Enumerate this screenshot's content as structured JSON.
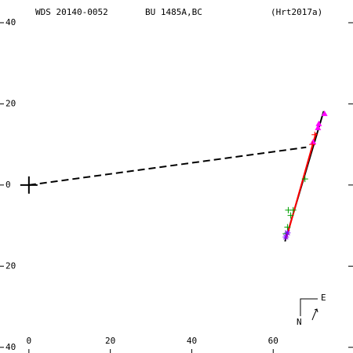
{
  "chart_data": {
    "type": "scatter",
    "title": "WDS 20140-0052",
    "subtitle": "BU 1485A,BC",
    "reference": "(Hrt2017a)",
    "compass": {
      "east": "E",
      "north": "N"
    },
    "xlim": [
      -7.1,
      79.6
    ],
    "ylim": [
      -41.4,
      45.6
    ],
    "xticks": [
      0,
      20,
      40,
      60
    ],
    "yticks": [
      40,
      20,
      0,
      {
        "value": -20,
        "label": "20"
      },
      {
        "value": -40,
        "label": "40"
      }
    ],
    "primary": {
      "x": 0,
      "y": 0
    },
    "series": [
      {
        "style": "line",
        "color": "#000000",
        "x": [
          62.9,
          72.4
        ],
        "values": [
          -13.9,
          18.2
        ]
      },
      {
        "style": "line",
        "color": "#ff0000",
        "x": [
          63.2,
          70.5
        ],
        "values": [
          -13.2,
          12.8
        ]
      },
      {
        "style": "dashed",
        "color": "#000000",
        "x": [
          0,
          68.1
        ],
        "values": [
          0,
          9.3
        ]
      },
      {
        "style": "plus",
        "color": "#00a000",
        "x": [
          63.7,
          64.9,
          64.3,
          67.8,
          63.5,
          63.1
        ],
        "values": [
          -6.2,
          -6.2,
          -7.5,
          1.5,
          -10.4,
          -12
        ]
      },
      {
        "style": "star",
        "color": "#8000ff",
        "x": [
          63.1,
          63.5
        ],
        "values": [
          -12.8,
          -11.8
        ]
      },
      {
        "style": "triangle",
        "color": "#ff00ff",
        "x": [
          72.6,
          71.2,
          71,
          69.8
        ],
        "values": [
          17.6,
          15.1,
          14.1,
          10.6
        ]
      },
      {
        "style": "plus",
        "color": "#ff0000",
        "x": [
          70.2,
          69.6
        ],
        "values": [
          12.4,
          10
        ]
      }
    ]
  }
}
